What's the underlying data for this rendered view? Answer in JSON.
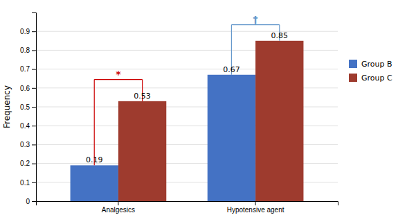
{
  "chart_data": {
    "type": "bar",
    "categories": [
      "Analgesics",
      "Hypotensive agent"
    ],
    "series": [
      {
        "name": "Group B",
        "color": "#4472C4",
        "values": [
          0.19,
          0.67
        ]
      },
      {
        "name": "Group C",
        "color": "#9E3B2E",
        "values": [
          0.53,
          0.85
        ]
      }
    ],
    "ylabel": "Frequency",
    "ylim": [
      0,
      1.0
    ],
    "yticks": [
      0,
      0.1,
      0.2,
      0.3,
      0.4,
      0.5,
      0.6,
      0.7,
      0.8,
      0.9
    ],
    "grid": true,
    "legend": "right",
    "data_labels": true,
    "annotations": [
      {
        "text": "*",
        "category": "Analgesics",
        "y": 0.645,
        "color": "#CC0000"
      },
      {
        "text": "†",
        "category": "Hypotensive agent",
        "y": 0.935,
        "color": "#6699CC"
      }
    ]
  }
}
